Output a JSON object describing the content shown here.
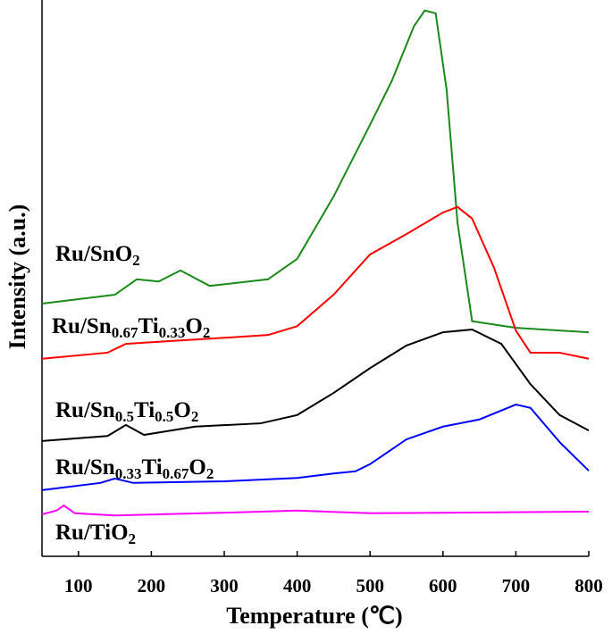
{
  "chart_data": {
    "type": "line",
    "x_label": "Temperature (℃)",
    "y_label": "Intensity (a.u.)",
    "xlim": [
      50,
      800
    ],
    "xticks": [
      100,
      200,
      300,
      400,
      500,
      600,
      700,
      800
    ],
    "ylim": [
      0,
      100
    ],
    "series": [
      {
        "name": "Ru/SnO2",
        "color": "#1a8a1a",
        "x": [
          50,
          150,
          180,
          210,
          240,
          280,
          360,
          400,
          450,
          500,
          530,
          560,
          575,
          590,
          605,
          620,
          640,
          700,
          800
        ],
        "values": [
          45.8,
          47.4,
          50.2,
          49.8,
          51.8,
          49.0,
          50.2,
          53.9,
          65.2,
          78.2,
          86.2,
          96.0,
          98.9,
          98.4,
          84.6,
          60.4,
          42.6,
          41.4,
          40.6
        ]
      },
      {
        "name": "Ru/Sn0.67Ti0.33O2",
        "color": "#ff0000",
        "x": [
          50,
          140,
          165,
          200,
          300,
          360,
          400,
          450,
          500,
          550,
          600,
          620,
          640,
          670,
          700,
          720,
          760,
          800
        ],
        "values": [
          35.8,
          36.9,
          38.5,
          38.8,
          39.6,
          40.1,
          41.7,
          47.4,
          54.7,
          58.4,
          62.3,
          63.3,
          61.2,
          52.3,
          40.9,
          36.9,
          36.9,
          35.8
        ]
      },
      {
        "name": "Ru/Sn0.5Ti0.5O2",
        "color": "#000000",
        "x": [
          50,
          140,
          165,
          190,
          260,
          350,
          400,
          450,
          500,
          550,
          600,
          640,
          680,
          720,
          760,
          800
        ],
        "values": [
          20.9,
          21.8,
          23.8,
          22.0,
          23.5,
          24.1,
          25.6,
          29.6,
          34.1,
          38.2,
          40.6,
          41.1,
          38.5,
          31.2,
          25.6,
          22.8
        ]
      },
      {
        "name": "Ru/Sn0.33Ti0.67O2",
        "color": "#0000ff",
        "x": [
          50,
          130,
          150,
          175,
          300,
          400,
          450,
          480,
          500,
          550,
          600,
          650,
          700,
          720,
          760,
          800
        ],
        "values": [
          12.0,
          13.3,
          14.1,
          13.3,
          13.6,
          14.2,
          15.0,
          15.4,
          16.7,
          21.2,
          23.5,
          24.8,
          27.5,
          26.9,
          20.7,
          15.5
        ]
      },
      {
        "name": "Ru/TiO2",
        "color": "#ff00ff",
        "x": [
          50,
          70,
          80,
          95,
          150,
          300,
          400,
          500,
          800
        ],
        "values": [
          7.6,
          8.3,
          9.2,
          7.8,
          7.4,
          7.9,
          8.3,
          7.8,
          8.1
        ]
      }
    ]
  }
}
